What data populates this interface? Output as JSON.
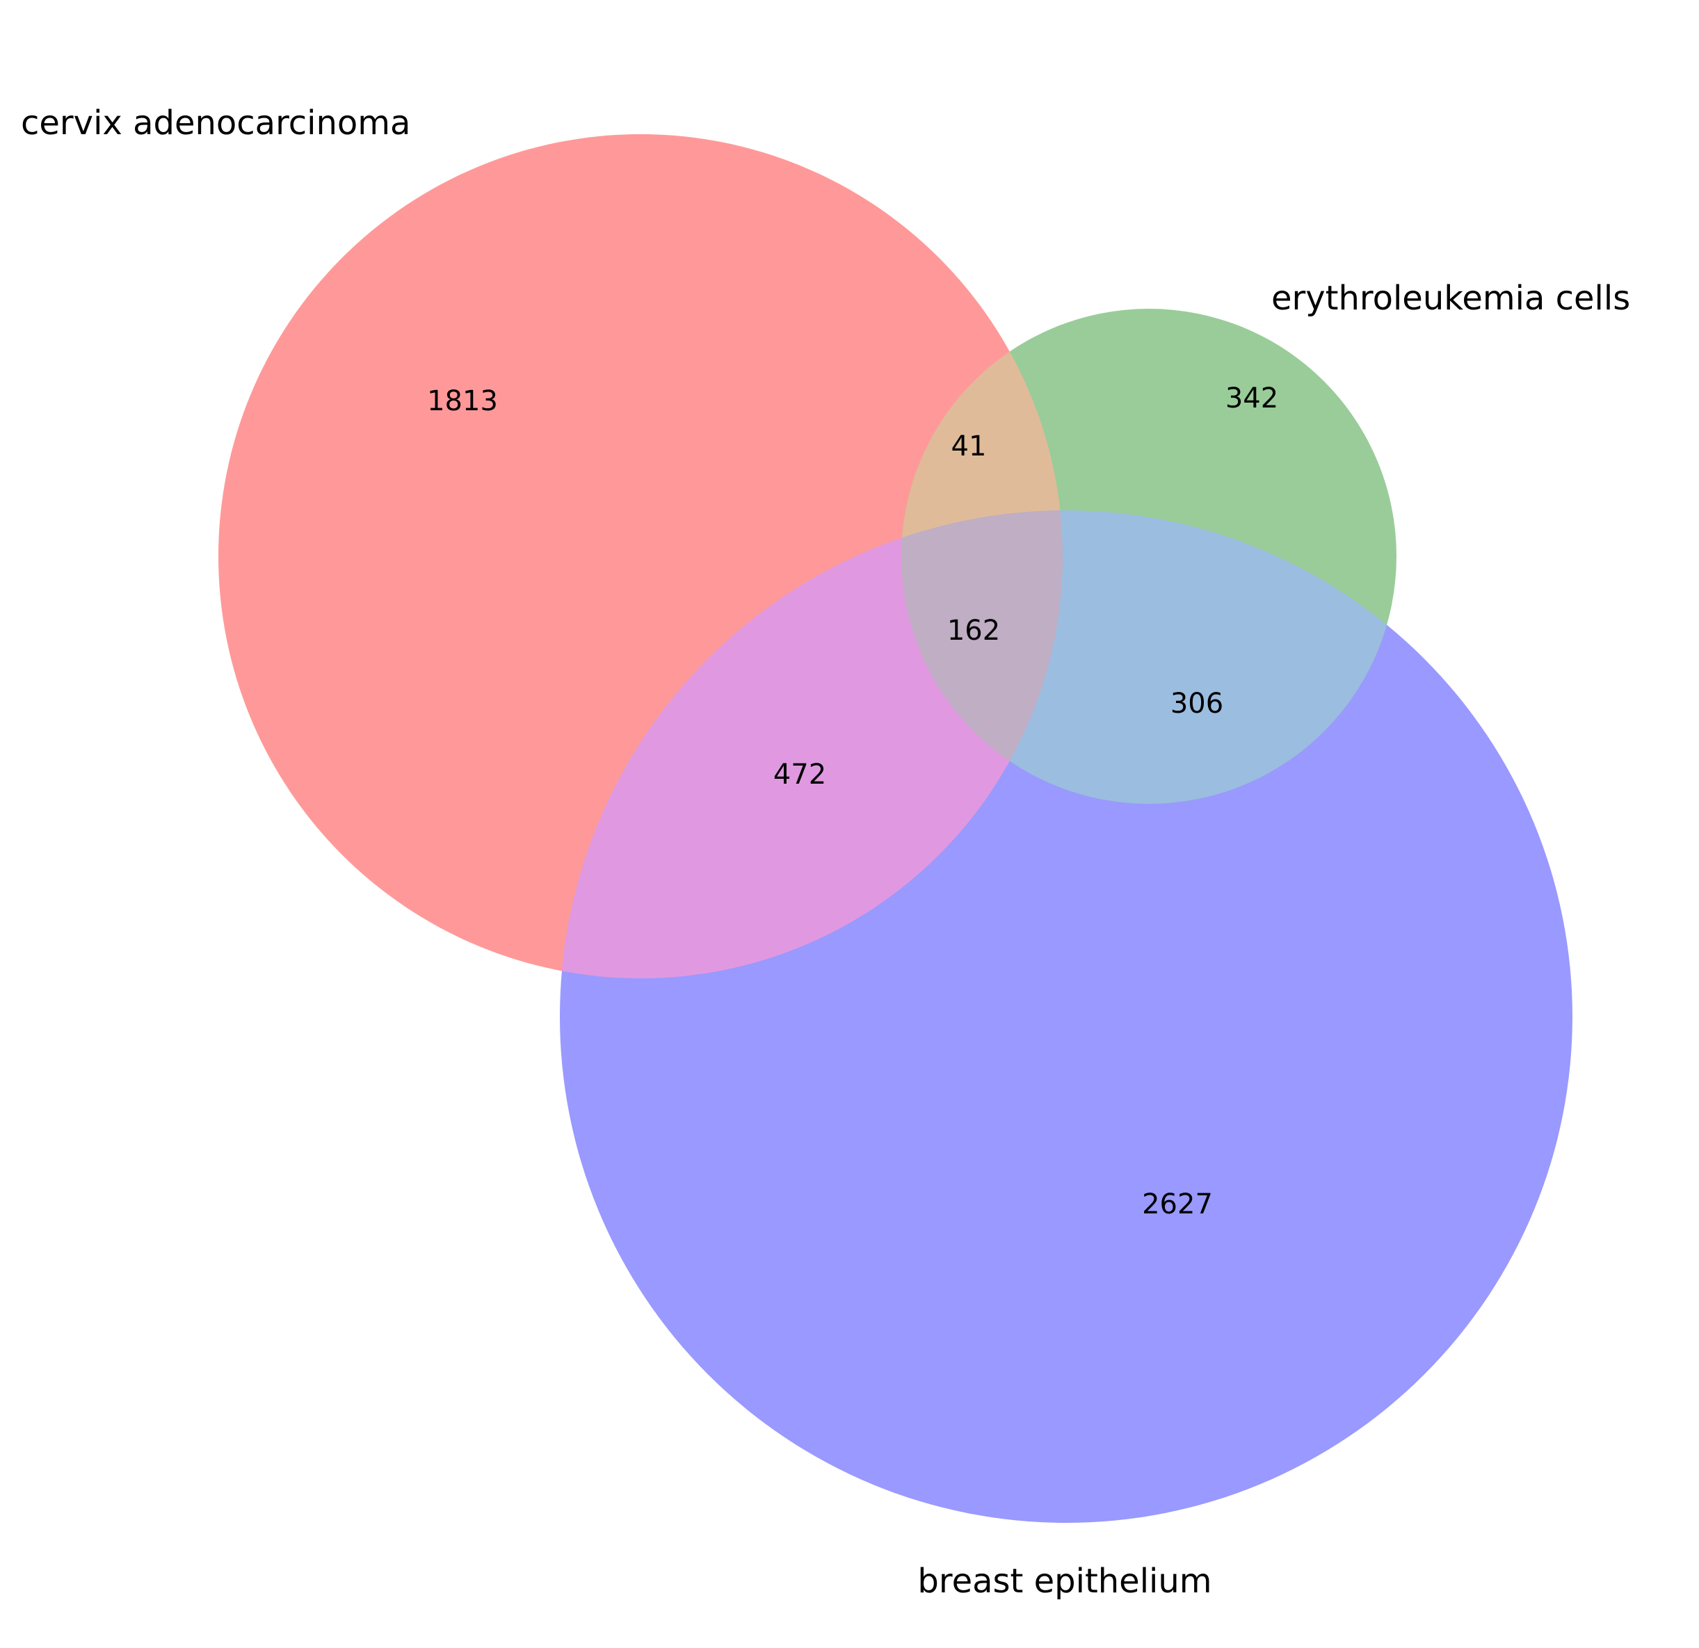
{
  "sets": [
    {
      "key": "A",
      "name": "cervix adenocarcinoma",
      "color": "#ff9999"
    },
    {
      "key": "B",
      "name": "erythroleukemia cells",
      "color": "#99cc99"
    },
    {
      "key": "C",
      "name": "breast epithelium",
      "color": "#9999ff"
    }
  ],
  "regions": {
    "A_only": "1813",
    "B_only": "342",
    "C_only": "2627",
    "AB_only": "41",
    "AC_only": "472",
    "BC_only": "306",
    "ABC": "162"
  },
  "region_colors": {
    "AB": "#e0bb99",
    "AC": "#e099e0",
    "BC": "#9bbde0",
    "ABC": "#bfaec4"
  }
}
